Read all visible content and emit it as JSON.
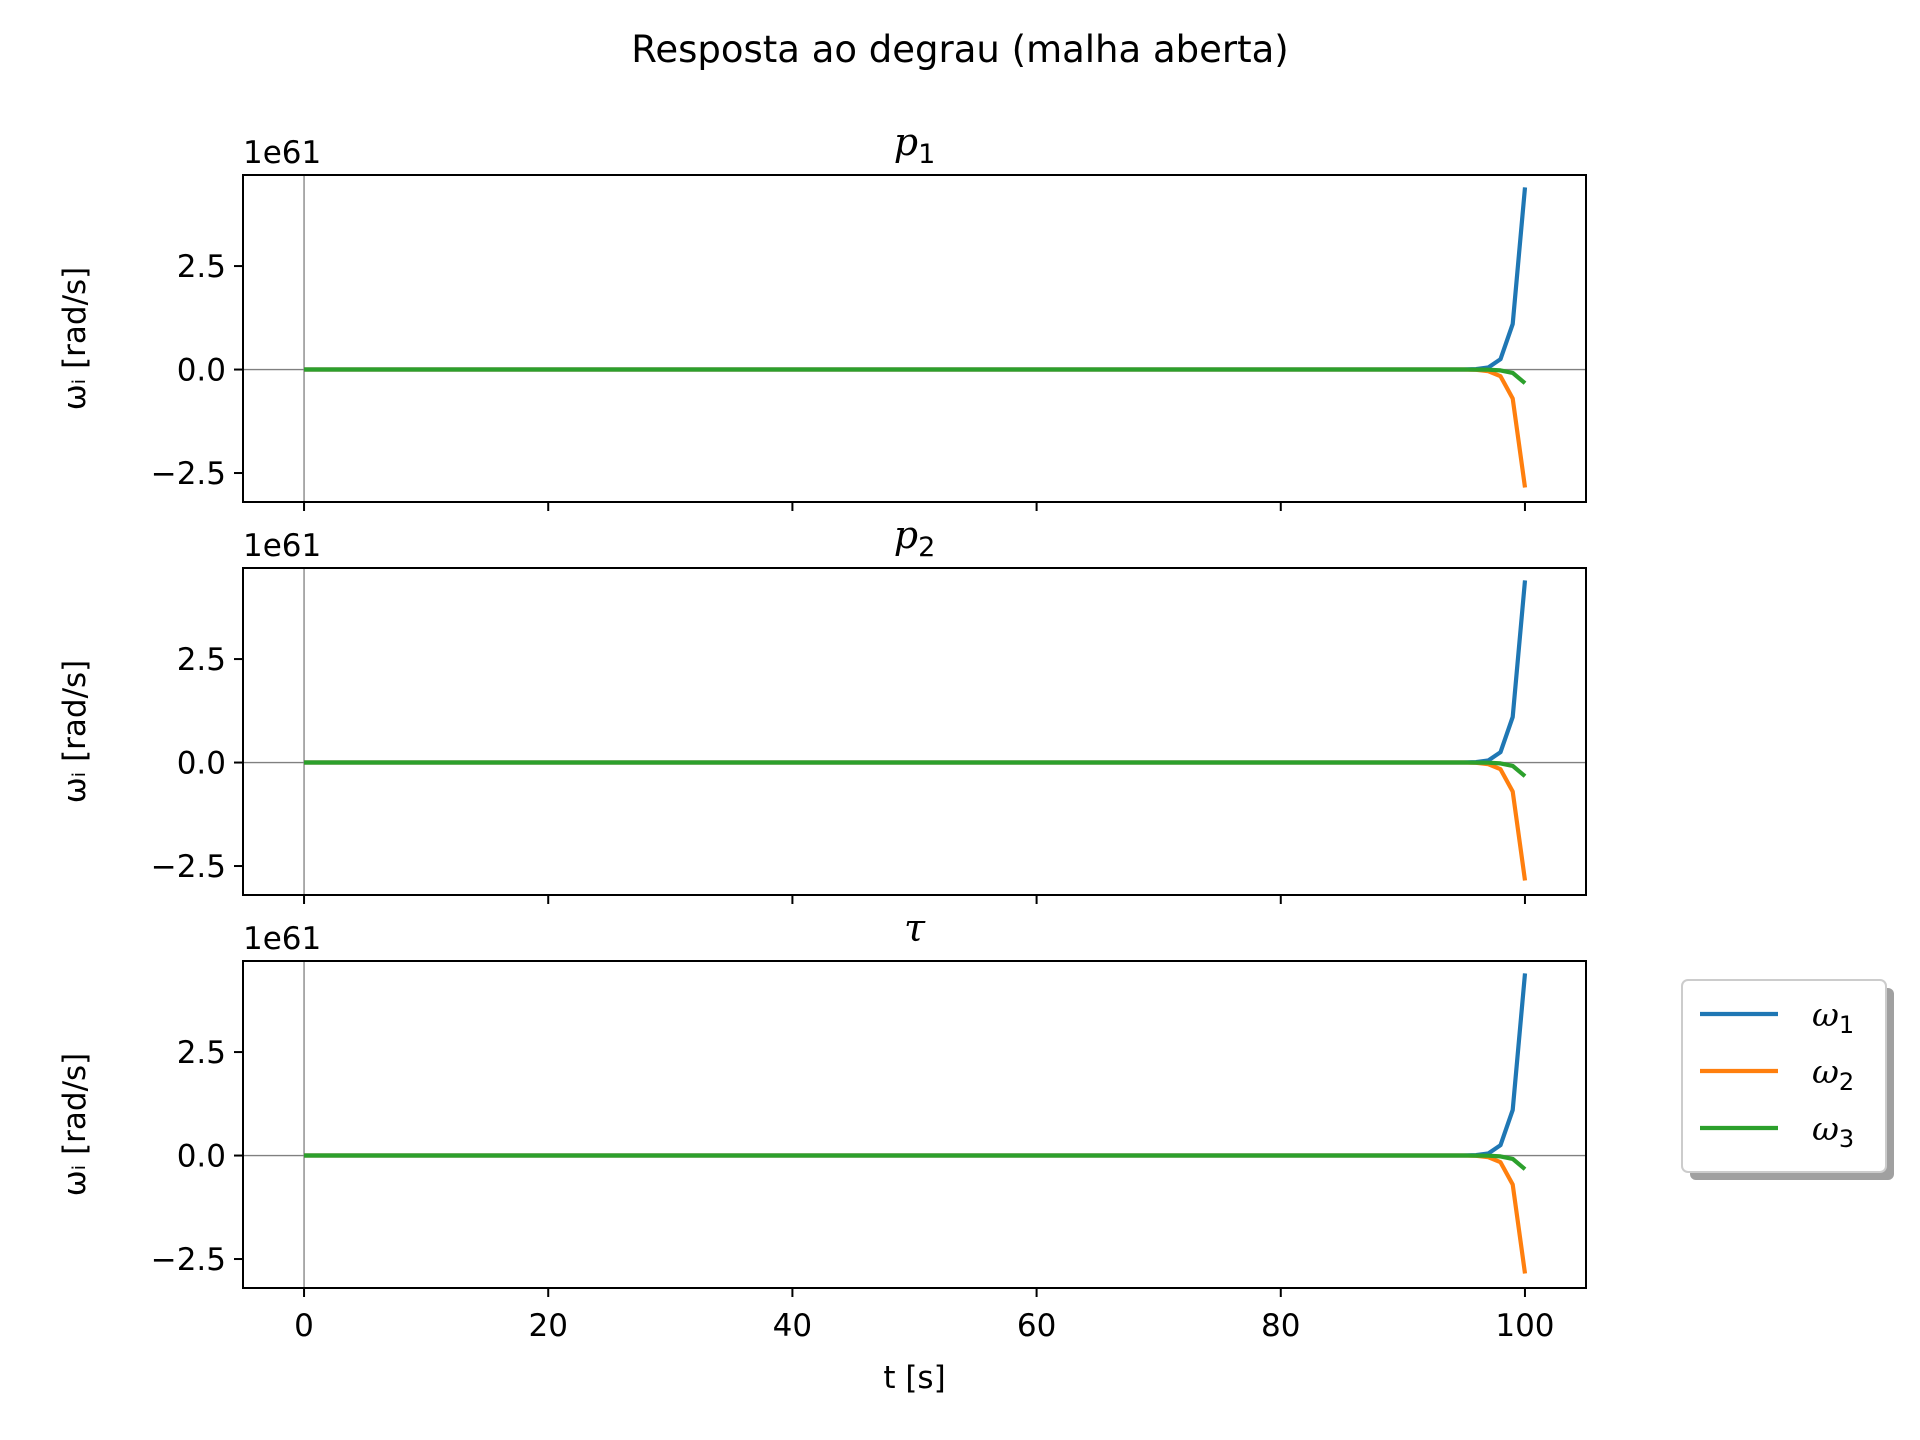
{
  "figure_title": "Resposta ao degrau (malha aberta)",
  "colors": {
    "omega1": "#1f77b4",
    "omega2": "#ff7f0e",
    "omega3": "#2ca02c",
    "zero_line": "#808080"
  },
  "legend": {
    "placement": "outside-right",
    "entries": [
      {
        "main": "ω",
        "sub": "1"
      },
      {
        "main": "ω",
        "sub": "2"
      },
      {
        "main": "ω",
        "sub": "3"
      }
    ]
  },
  "chart_data": [
    {
      "type": "line",
      "title_main": "p",
      "title_sub": "1",
      "ylabel": "ωᵢ [rad/s]",
      "xlabel": "",
      "offset_text": "1e61",
      "xlim": [
        -5,
        105
      ],
      "ylim": [
        -3.2,
        4.7
      ],
      "xticks": [
        0,
        20,
        40,
        60,
        80,
        100
      ],
      "yticks": [
        -2.5,
        0.0,
        2.5
      ],
      "ytick_labels": [
        "−2.5",
        "0.0",
        "2.5"
      ],
      "xtick_labels": [],
      "x": [
        0,
        95,
        96,
        97,
        98,
        99,
        100
      ],
      "series": [
        {
          "name": "ω1",
          "values": [
            0,
            0,
            0.01,
            0.05,
            0.25,
            1.1,
            4.4
          ]
        },
        {
          "name": "ω2",
          "values": [
            0,
            0,
            -0.006,
            -0.04,
            -0.16,
            -0.7,
            -2.85
          ]
        },
        {
          "name": "ω3",
          "values": [
            0,
            0,
            -0.001,
            -0.004,
            -0.02,
            -0.08,
            -0.33
          ]
        }
      ]
    },
    {
      "type": "line",
      "title_main": "p",
      "title_sub": "2",
      "ylabel": "ωᵢ [rad/s]",
      "xlabel": "",
      "offset_text": "1e61",
      "xlim": [
        -5,
        105
      ],
      "ylim": [
        -3.2,
        4.7
      ],
      "xticks": [
        0,
        20,
        40,
        60,
        80,
        100
      ],
      "yticks": [
        -2.5,
        0.0,
        2.5
      ],
      "ytick_labels": [
        "−2.5",
        "0.0",
        "2.5"
      ],
      "xtick_labels": [],
      "x": [
        0,
        95,
        96,
        97,
        98,
        99,
        100
      ],
      "series": [
        {
          "name": "ω1",
          "values": [
            0,
            0,
            0.01,
            0.05,
            0.25,
            1.1,
            4.4
          ]
        },
        {
          "name": "ω2",
          "values": [
            0,
            0,
            -0.006,
            -0.04,
            -0.16,
            -0.7,
            -2.85
          ]
        },
        {
          "name": "ω3",
          "values": [
            0,
            0,
            -0.001,
            -0.004,
            -0.02,
            -0.08,
            -0.33
          ]
        }
      ]
    },
    {
      "type": "line",
      "title_main": "τ",
      "title_sub": "",
      "ylabel": "ωᵢ [rad/s]",
      "xlabel": "t [s]",
      "offset_text": "1e61",
      "xlim": [
        -5,
        105
      ],
      "ylim": [
        -3.2,
        4.7
      ],
      "xticks": [
        0,
        20,
        40,
        60,
        80,
        100
      ],
      "yticks": [
        -2.5,
        0.0,
        2.5
      ],
      "ytick_labels": [
        "−2.5",
        "0.0",
        "2.5"
      ],
      "xtick_labels": [
        "0",
        "20",
        "40",
        "60",
        "80",
        "100"
      ],
      "x": [
        0,
        95,
        96,
        97,
        98,
        99,
        100
      ],
      "series": [
        {
          "name": "ω1",
          "values": [
            0,
            0,
            0.01,
            0.05,
            0.25,
            1.1,
            4.4
          ]
        },
        {
          "name": "ω2",
          "values": [
            0,
            0,
            -0.006,
            -0.04,
            -0.16,
            -0.7,
            -2.85
          ]
        },
        {
          "name": "ω3",
          "values": [
            0,
            0,
            -0.001,
            -0.004,
            -0.02,
            -0.08,
            -0.33
          ]
        }
      ]
    }
  ]
}
